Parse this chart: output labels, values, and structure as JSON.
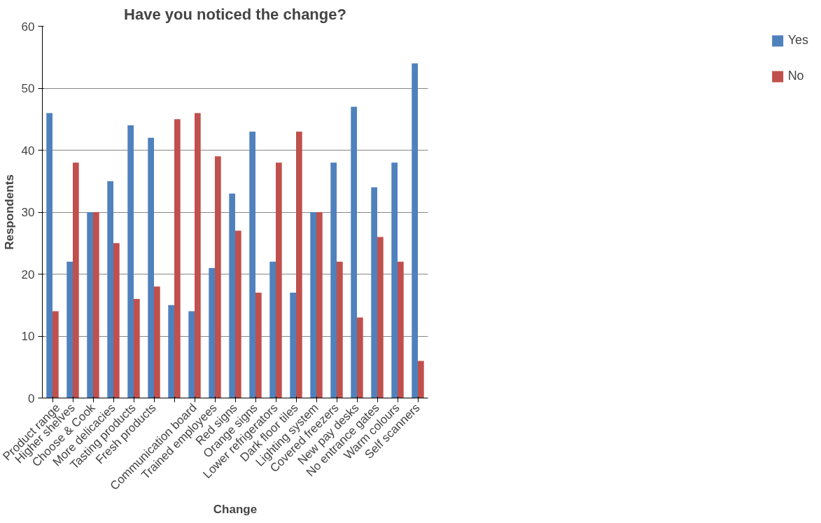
{
  "chart_data": {
    "type": "bar",
    "title": "Have you noticed the change?",
    "xlabel": "Change",
    "ylabel": "Respondents",
    "categories": [
      "Product range",
      "Higher shelves",
      "Choose & Cook",
      "More delicacies",
      "Tasting products",
      "Fresh products",
      null,
      "Communication board",
      "Trained employees",
      "Red signs",
      "Orange signs",
      "Lower refrigerators",
      "Dark floor tiles",
      "Lighting system",
      "Covered freezers",
      "New pay desks",
      "No entrance gates",
      "Warm colours",
      "Self scanners"
    ],
    "series": [
      {
        "name": "Yes",
        "color": "#4f81bd",
        "values": [
          46,
          22,
          30,
          35,
          44,
          42,
          15,
          14,
          21,
          33,
          43,
          22,
          17,
          30,
          38,
          47,
          34,
          38,
          54
        ]
      },
      {
        "name": "No",
        "color": "#c0504d",
        "values": [
          14,
          38,
          30,
          25,
          16,
          18,
          45,
          46,
          39,
          27,
          17,
          38,
          43,
          30,
          22,
          13,
          26,
          22,
          6
        ]
      }
    ],
    "ylim": [
      0,
      60
    ],
    "yticks": [
      0,
      10,
      20,
      30,
      40,
      50,
      60
    ],
    "grid": "y",
    "legend": "right"
  }
}
